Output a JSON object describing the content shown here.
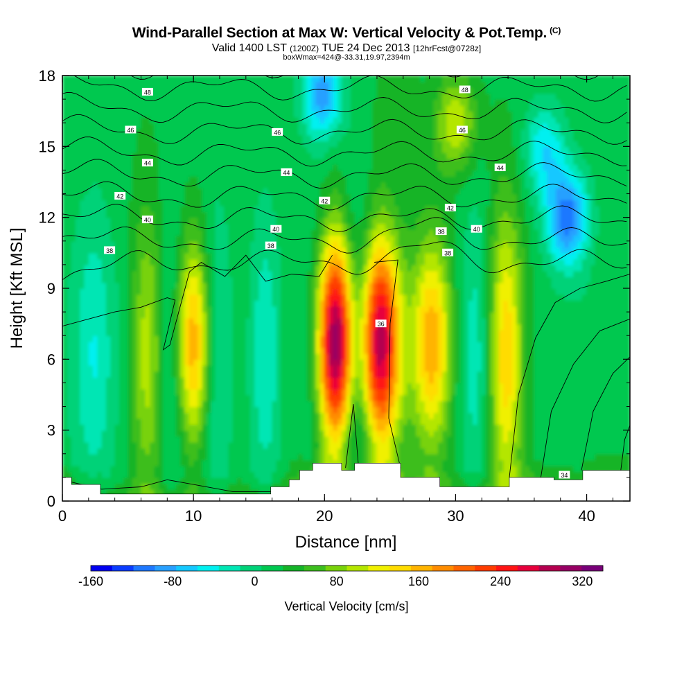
{
  "title": {
    "main": "Wind-Parallel Section at Max W: Vertical Velocity & Pot.Temp.",
    "copyright": "(C)",
    "valid_prefix": "Valid 1400 LST",
    "valid_zulu": "(1200Z)",
    "valid_date": "TUE 24 Dec 2013",
    "forecast": "[12hrFcst@0728z]",
    "box": "boxWmax=424@-33.31,19.97,2394m"
  },
  "chart_data": {
    "type": "heatmap",
    "xlabel": "Distance [nm]",
    "ylabel": "Height [Kft MSL]",
    "xlim": [
      0,
      43.3
    ],
    "ylim": [
      0,
      18
    ],
    "x_ticks": [
      0,
      10,
      20,
      30,
      40
    ],
    "y_ticks": [
      0,
      3,
      6,
      9,
      12,
      15,
      18
    ],
    "colorbar": {
      "label": "Vertical Velocity [cm/s]",
      "range": [
        -160,
        340
      ],
      "tick_values": [
        -160,
        -80,
        0,
        80,
        160,
        240,
        320
      ],
      "colors": [
        "#0000f0",
        "#0a3cff",
        "#1e78ff",
        "#28a0ff",
        "#14c8ff",
        "#00f0f0",
        "#00e6b4",
        "#00d278",
        "#00c850",
        "#14b428",
        "#3cbe1e",
        "#78d20a",
        "#b4e600",
        "#f0f000",
        "#ffdc00",
        "#ffb400",
        "#ff8c00",
        "#ff6400",
        "#ff3c00",
        "#ff1414",
        "#e6003c",
        "#b40050",
        "#960064",
        "#780078"
      ]
    },
    "vertical_velocity_columns": [
      {
        "x": 1.0,
        "peak": 5
      },
      {
        "x": 2.5,
        "peak": -30
      },
      {
        "x": 4.5,
        "peak": 10
      },
      {
        "x": 6.6,
        "peak": 110
      },
      {
        "x": 8.3,
        "peak": -40
      },
      {
        "x": 10.0,
        "peak": 190
      },
      {
        "x": 11.6,
        "peak": -45
      },
      {
        "x": 13.5,
        "peak": 30
      },
      {
        "x": 15.5,
        "peak": -35
      },
      {
        "x": 17.7,
        "peak": 40
      },
      {
        "x": 19.2,
        "peak": -20
      },
      {
        "x": 20.9,
        "peak": 340
      },
      {
        "x": 22.4,
        "peak": -70
      },
      {
        "x": 24.2,
        "peak": 300
      },
      {
        "x": 26.0,
        "peak": 35
      },
      {
        "x": 28.2,
        "peak": 170
      },
      {
        "x": 30.1,
        "peak": 20
      },
      {
        "x": 31.6,
        "peak": -30
      },
      {
        "x": 33.8,
        "peak": 150
      },
      {
        "x": 35.6,
        "peak": 20
      },
      {
        "x": 37.8,
        "peak": 15
      },
      {
        "x": 39.8,
        "peak": 10
      },
      {
        "x": 41.8,
        "peak": 25
      }
    ],
    "upper_anomalies": [
      {
        "x": 19.8,
        "y": 17.3,
        "value": -110
      },
      {
        "x": 38.5,
        "y": 12.0,
        "value": -130
      },
      {
        "x": 36.8,
        "y": 14.8,
        "value": -75
      },
      {
        "x": 25.5,
        "y": 16.5,
        "value": 20
      },
      {
        "x": 30.0,
        "y": 16.0,
        "value": 90
      }
    ],
    "potential_temperature_contours": {
      "levels": [
        34,
        35,
        36,
        37,
        38,
        39,
        40,
        41,
        42,
        43,
        44,
        45,
        46,
        47,
        48
      ],
      "labeled_levels": [
        34,
        36,
        38,
        40,
        42,
        44,
        46,
        48
      ],
      "labels": [
        {
          "level": 48,
          "x": 6.5,
          "y": 17.3
        },
        {
          "level": 48,
          "x": 30.7,
          "y": 17.4
        },
        {
          "level": 46,
          "x": 5.2,
          "y": 15.7
        },
        {
          "level": 46,
          "x": 16.4,
          "y": 15.6
        },
        {
          "level": 46,
          "x": 30.5,
          "y": 15.7
        },
        {
          "level": 44,
          "x": 6.5,
          "y": 14.3
        },
        {
          "level": 44,
          "x": 17.1,
          "y": 13.9
        },
        {
          "level": 44,
          "x": 33.4,
          "y": 14.1
        },
        {
          "level": 42,
          "x": 4.4,
          "y": 12.9
        },
        {
          "level": 42,
          "x": 20.0,
          "y": 12.7
        },
        {
          "level": 42,
          "x": 29.6,
          "y": 12.4
        },
        {
          "level": 40,
          "x": 6.5,
          "y": 11.9
        },
        {
          "level": 40,
          "x": 16.3,
          "y": 11.5
        },
        {
          "level": 40,
          "x": 31.6,
          "y": 11.5
        },
        {
          "level": 38,
          "x": 3.6,
          "y": 10.6
        },
        {
          "level": 38,
          "x": 15.9,
          "y": 10.8
        },
        {
          "level": 38,
          "x": 28.9,
          "y": 11.4
        },
        {
          "level": 38,
          "x": 29.4,
          "y": 10.5
        },
        {
          "level": 36,
          "x": 24.3,
          "y": 7.5
        },
        {
          "level": 34,
          "x": 38.3,
          "y": 1.1
        }
      ]
    },
    "terrain": [
      [
        0,
        1.0
      ],
      [
        0.7,
        1.0
      ],
      [
        0.7,
        0.7
      ],
      [
        2.9,
        0.7
      ],
      [
        2.9,
        0.3
      ],
      [
        15.9,
        0.3
      ],
      [
        15.9,
        0.6
      ],
      [
        17.3,
        0.6
      ],
      [
        17.3,
        0.9
      ],
      [
        18.1,
        0.9
      ],
      [
        18.1,
        1.3
      ],
      [
        19.1,
        1.3
      ],
      [
        19.1,
        1.6
      ],
      [
        21.3,
        1.6
      ],
      [
        21.3,
        1.3
      ],
      [
        22.3,
        1.3
      ],
      [
        22.3,
        1.6
      ],
      [
        25.8,
        1.6
      ],
      [
        25.8,
        1.0
      ],
      [
        28.8,
        1.0
      ],
      [
        28.8,
        0.6
      ],
      [
        34.1,
        0.6
      ],
      [
        34.1,
        1.0
      ],
      [
        37.5,
        1.0
      ],
      [
        37.5,
        0.9
      ],
      [
        39.7,
        0.9
      ],
      [
        39.7,
        1.3
      ],
      [
        43.3,
        1.3
      ]
    ]
  }
}
